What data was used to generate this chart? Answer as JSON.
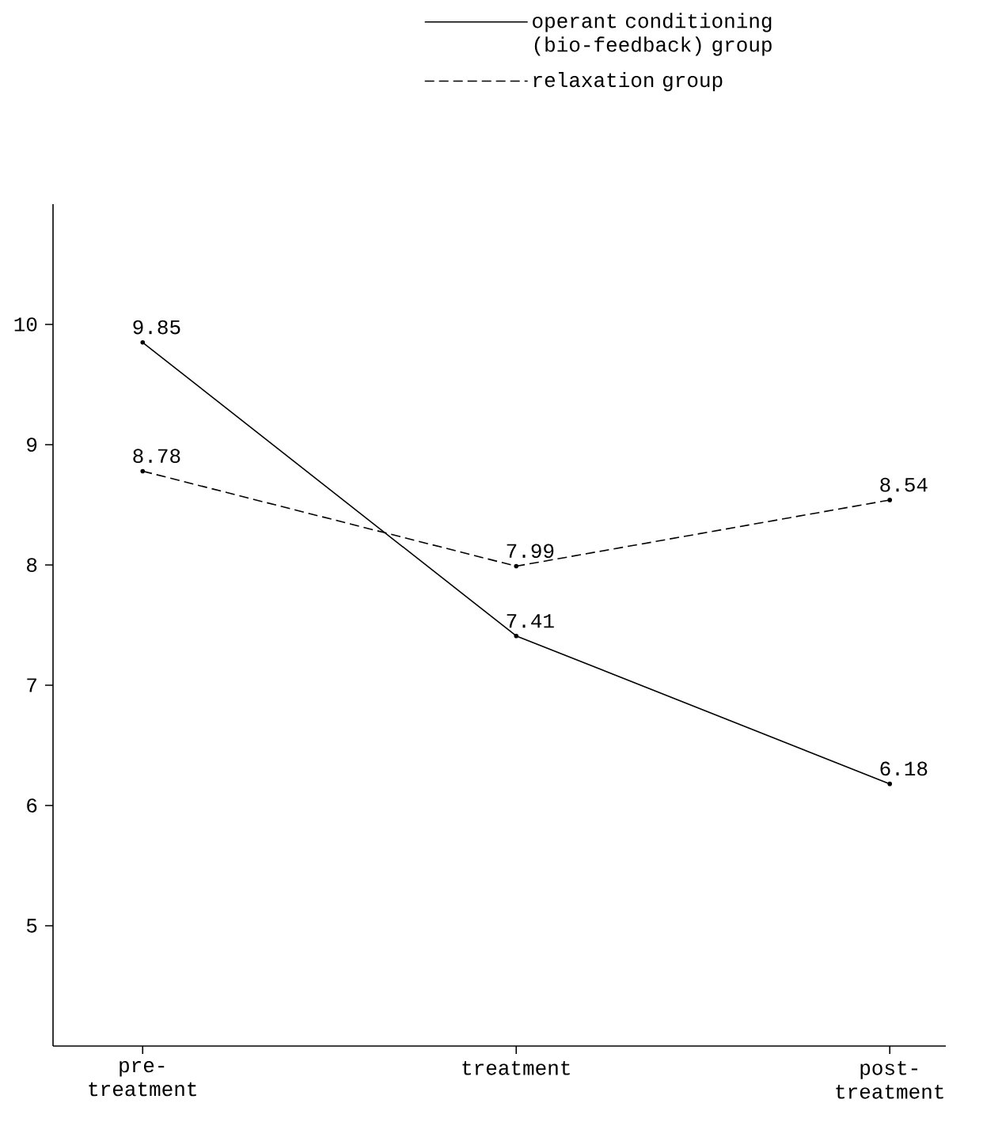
{
  "chart_data": {
    "type": "line",
    "categories": [
      "pre-treatment",
      "treatment",
      "post-treatment"
    ],
    "series": [
      {
        "name": "operant conditioning (bio-feedback) group",
        "color": "#000000",
        "line_style": "solid",
        "values": [
          9.85,
          7.41,
          6.18
        ]
      },
      {
        "name": "relaxation group",
        "color": "#000000",
        "line_style": "dashed",
        "values": [
          8.78,
          7.99,
          8.54
        ]
      }
    ],
    "ylim": [
      4,
      11
    ],
    "yticks": [
      5,
      6,
      7,
      8,
      9,
      10
    ],
    "data_labels": true,
    "legend": "top right",
    "marker": "circle"
  }
}
